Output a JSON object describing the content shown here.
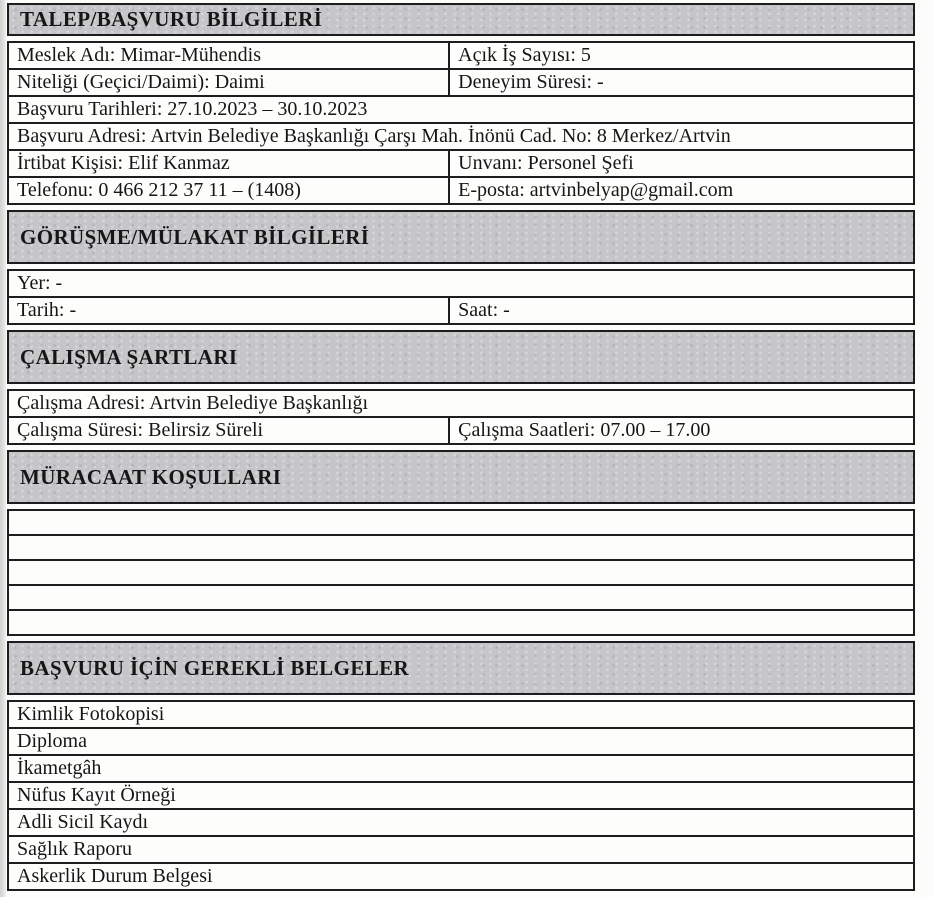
{
  "document": {
    "colors": {
      "section_header_bg": "#c6c6c9",
      "border": "#1d1d1f",
      "text": "#161616",
      "page_bg": "#fcfcfb"
    },
    "sections": [
      {
        "title": "TALEP/BAŞVURU BİLGİLERİ",
        "rows": [
          {
            "cells": [
              "Meslek Adı: Mimar-Mühendis",
              "Açık İş Sayısı: 5"
            ]
          },
          {
            "cells": [
              "Niteliği (Geçici/Daimi): Daimi",
              "Deneyim Süresi: -"
            ]
          },
          {
            "cells": [
              "Başvuru Tarihleri: 27.10.2023 – 30.10.2023"
            ]
          },
          {
            "cells": [
              "Başvuru Adresi: Artvin Belediye Başkanlığı Çarşı Mah. İnönü Cad. No: 8 Merkez/Artvin"
            ]
          },
          {
            "cells": [
              "İrtibat Kişisi: Elif Kanmaz",
              "Unvanı: Personel Şefi"
            ]
          },
          {
            "cells": [
              "Telefonu: 0 466 212 37 11 – (1408)",
              "E-posta: artvinbelyap@gmail.com"
            ]
          }
        ]
      },
      {
        "title": "GÖRÜŞME/MÜLAKAT BİLGİLERİ",
        "rows": [
          {
            "cells": [
              "Yer: -"
            ]
          },
          {
            "cells": [
              "Tarih: -",
              "Saat: -"
            ]
          }
        ]
      },
      {
        "title": "ÇALIŞMA ŞARTLARI",
        "rows": [
          {
            "cells": [
              "Çalışma Adresi: Artvin Belediye Başkanlığı"
            ]
          },
          {
            "cells": [
              "Çalışma Süresi: Belirsiz Süreli",
              "Çalışma Saatleri: 07.00 – 17.00"
            ]
          }
        ]
      },
      {
        "title": "MÜRACAAT KOŞULLARI",
        "rows": [
          {
            "cells": [
              ""
            ]
          },
          {
            "cells": [
              ""
            ]
          },
          {
            "cells": [
              ""
            ]
          },
          {
            "cells": [
              ""
            ]
          },
          {
            "cells": [
              ""
            ]
          }
        ]
      },
      {
        "title": "BAŞVURU İÇİN GEREKLİ BELGELER",
        "rows": [
          {
            "cells": [
              "Kimlik Fotokopisi"
            ]
          },
          {
            "cells": [
              "Diploma"
            ]
          },
          {
            "cells": [
              "İkametgâh"
            ]
          },
          {
            "cells": [
              "Nüfus Kayıt Örneği"
            ]
          },
          {
            "cells": [
              "Adli Sicil Kaydı"
            ]
          },
          {
            "cells": [
              "Sağlık Raporu"
            ]
          },
          {
            "cells": [
              "Askerlik Durum Belgesi"
            ]
          }
        ]
      }
    ]
  }
}
